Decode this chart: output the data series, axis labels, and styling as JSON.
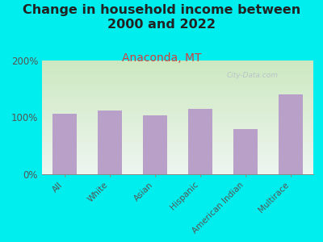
{
  "title": "Change in household income between\n2000 and 2022",
  "subtitle": "Anaconda, MT",
  "categories": [
    "All",
    "White",
    "Asian",
    "Hispanic",
    "American Indian",
    "Multirace"
  ],
  "values": [
    106,
    112,
    103,
    115,
    80,
    140
  ],
  "bar_color": "#b8a0c8",
  "background_color": "#00EEEE",
  "gradient_top": "#cce8c0",
  "gradient_bottom": "#eef5f0",
  "title_fontsize": 11.5,
  "subtitle_fontsize": 10,
  "subtitle_color": "#d04040",
  "tick_label_color": "#555555",
  "ytick_color": "#555555",
  "ylim": [
    0,
    200
  ],
  "yticks": [
    0,
    100,
    200
  ],
  "ytick_labels": [
    "0%",
    "100%",
    "200%"
  ],
  "watermark": "City-Data.com"
}
